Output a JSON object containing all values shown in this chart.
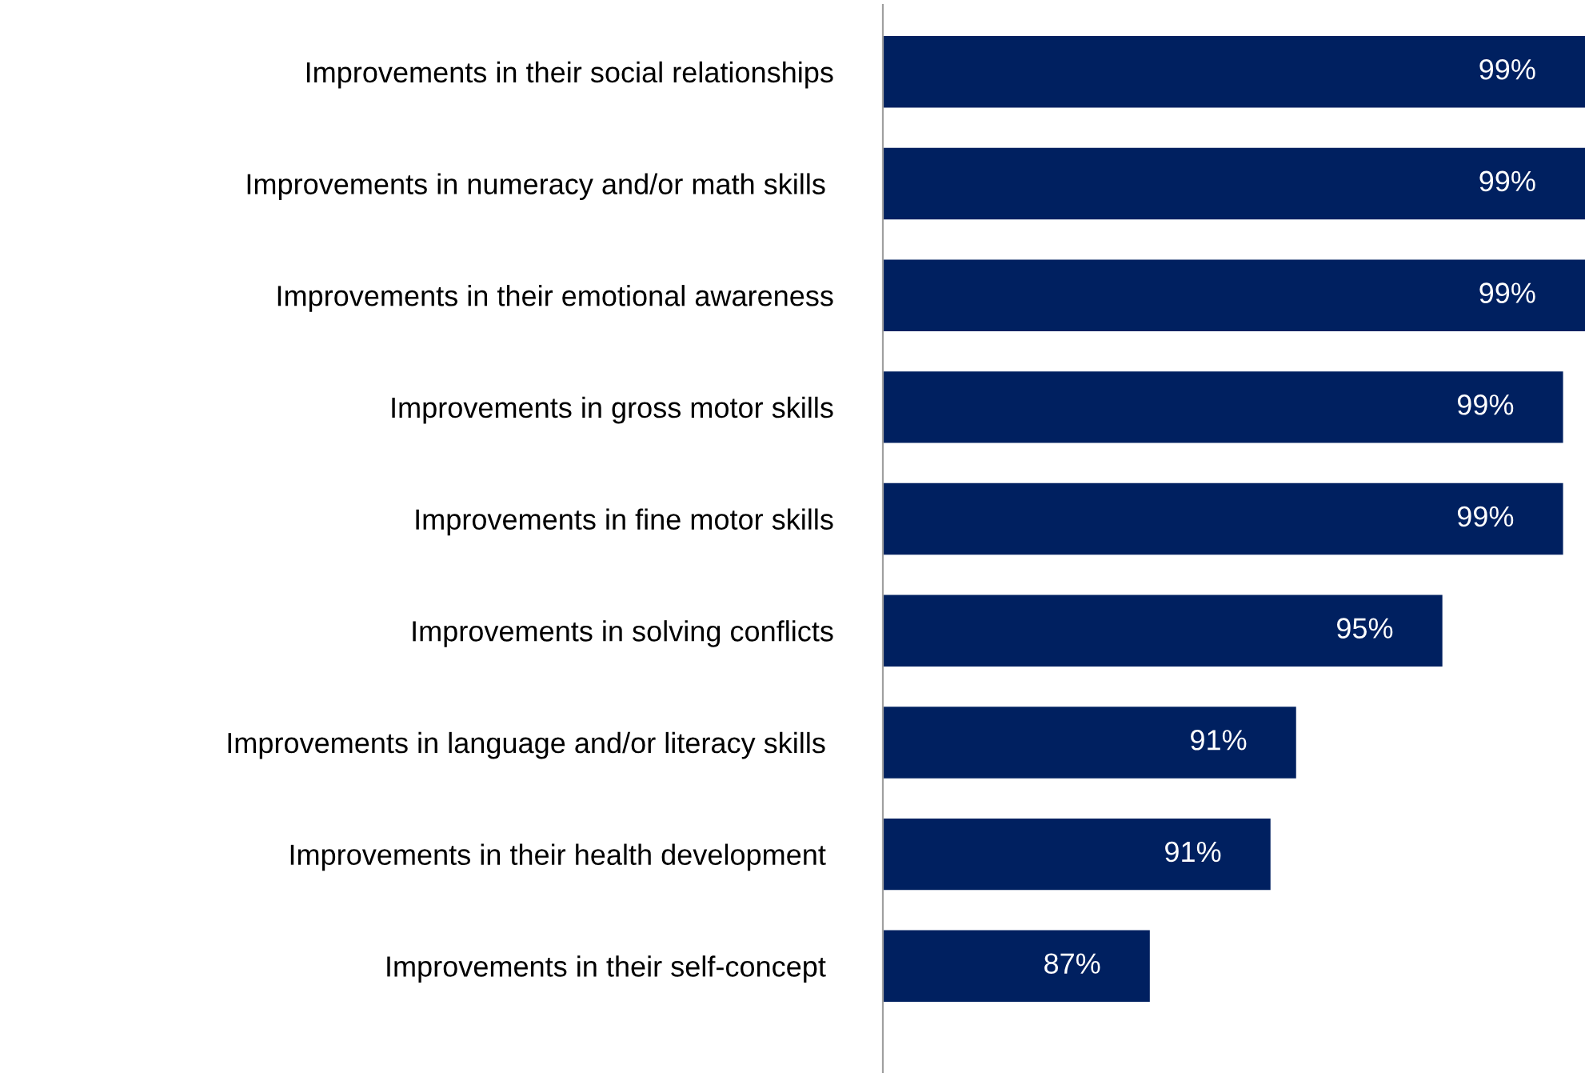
{
  "chart_data": {
    "type": "bar",
    "orientation": "horizontal",
    "categories": [
      "Improvements in their social relationships",
      "Improvements in numeracy and/or math skills ",
      "Improvements in their emotional awareness",
      "Improvements in gross motor skills",
      "Improvements in fine motor skills",
      "Improvements in solving conflicts",
      "Improvements in language and/or literacy skills ",
      "Improvements in their health development ",
      "Improvements in their self-concept "
    ],
    "values": [
      99.2,
      99.2,
      99.2,
      98.6,
      98.6,
      95.3,
      91.3,
      90.6,
      87.3
    ],
    "value_labels": [
      "99%",
      "99%",
      "99%",
      "99%",
      "99%",
      "95%",
      "91%",
      "91%",
      "87%"
    ],
    "color": "#002060",
    "xlim": [
      80,
      99.2
    ],
    "tick_labels": "y",
    "grid": false,
    "legend": false
  }
}
